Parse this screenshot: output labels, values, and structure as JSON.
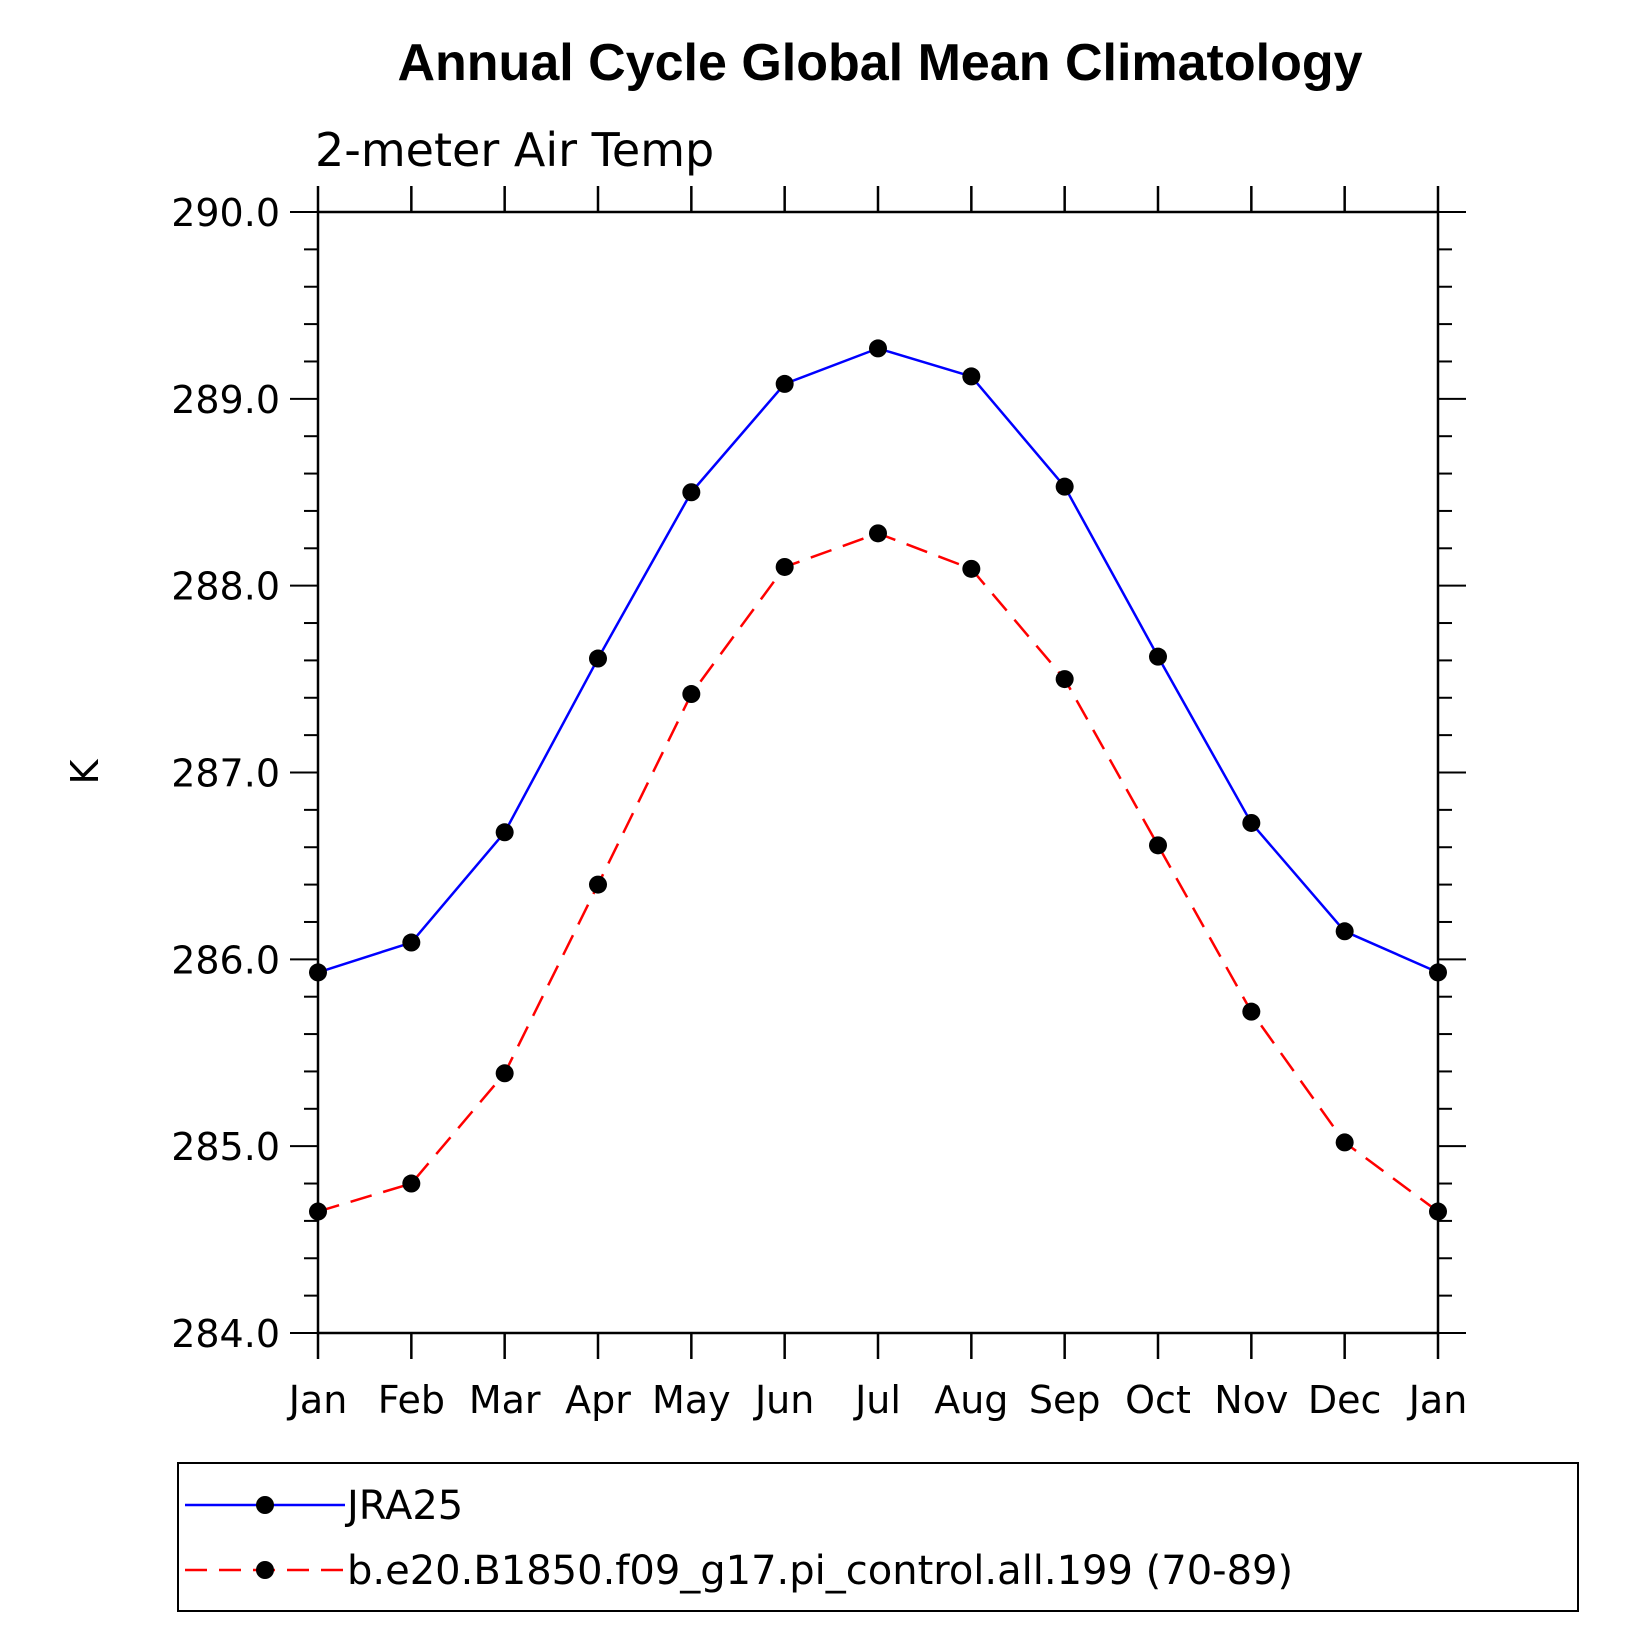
{
  "chart_data": {
    "type": "line",
    "title": "Annual Cycle Global Mean Climatology",
    "subtitle": "2-meter Air Temp",
    "ylabel": "K",
    "xlabel": "",
    "categories": [
      "Jan",
      "Feb",
      "Mar",
      "Apr",
      "May",
      "Jun",
      "Jul",
      "Aug",
      "Sep",
      "Oct",
      "Nov",
      "Dec",
      "Jan"
    ],
    "ylim": [
      284.0,
      290.0
    ],
    "yticks": [
      "284.0",
      "285.0",
      "286.0",
      "287.0",
      "288.0",
      "289.0",
      "290.0"
    ],
    "grid": false,
    "legend_position": "bottom",
    "series": [
      {
        "name": "JRA25",
        "color": "#0000ff",
        "line_style": "solid",
        "values": [
          285.93,
          286.09,
          286.68,
          287.61,
          288.5,
          289.08,
          289.27,
          289.12,
          288.53,
          287.62,
          286.73,
          286.15,
          285.93
        ]
      },
      {
        "name": "b.e20.B1850.f09_g17.pi_control.all.199 (70-89)",
        "color": "#ff0000",
        "line_style": "dashed",
        "values": [
          284.65,
          284.8,
          285.39,
          286.4,
          287.42,
          288.1,
          288.28,
          288.09,
          287.5,
          286.61,
          285.72,
          285.02,
          284.65
        ]
      }
    ]
  }
}
